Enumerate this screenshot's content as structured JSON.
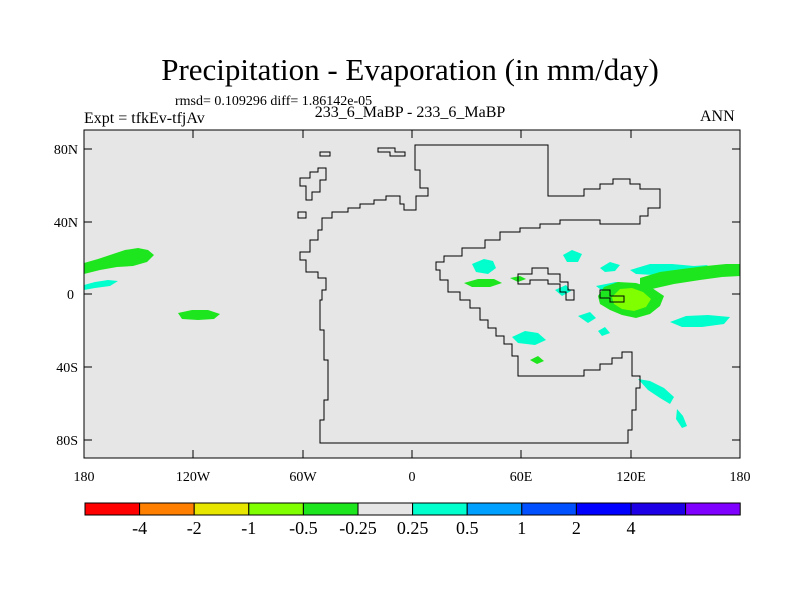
{
  "title": "Precipitation - Evaporation (in mm/day)",
  "stats": "rmsd= 0.109296 diff= 1.86142e-05",
  "left_label": "Expt = tfkEv-tfjAv",
  "center_label": "233_6_MaBP - 233_6_MaBP",
  "right_label": "ANN",
  "lat_ticks": [
    "80N",
    "40N",
    "0",
    "40S",
    "80S"
  ],
  "lon_ticks": [
    "180",
    "120W",
    "60W",
    "0",
    "60E",
    "120E",
    "180"
  ],
  "colorbar": {
    "colors": [
      "#ff0000",
      "#ff8000",
      "#e6e600",
      "#80ff00",
      "#1ee61e",
      "#e6e6e6",
      "#00ffcc",
      "#00a0ff",
      "#0050ff",
      "#0000ff",
      "#1e00e6",
      "#8000ff"
    ],
    "labels": [
      "-4",
      "-2",
      "-1",
      "-0.5",
      "-0.25",
      "0.25",
      "0.5",
      "1",
      "2",
      "4"
    ]
  },
  "background_color": "#e6e6e6"
}
